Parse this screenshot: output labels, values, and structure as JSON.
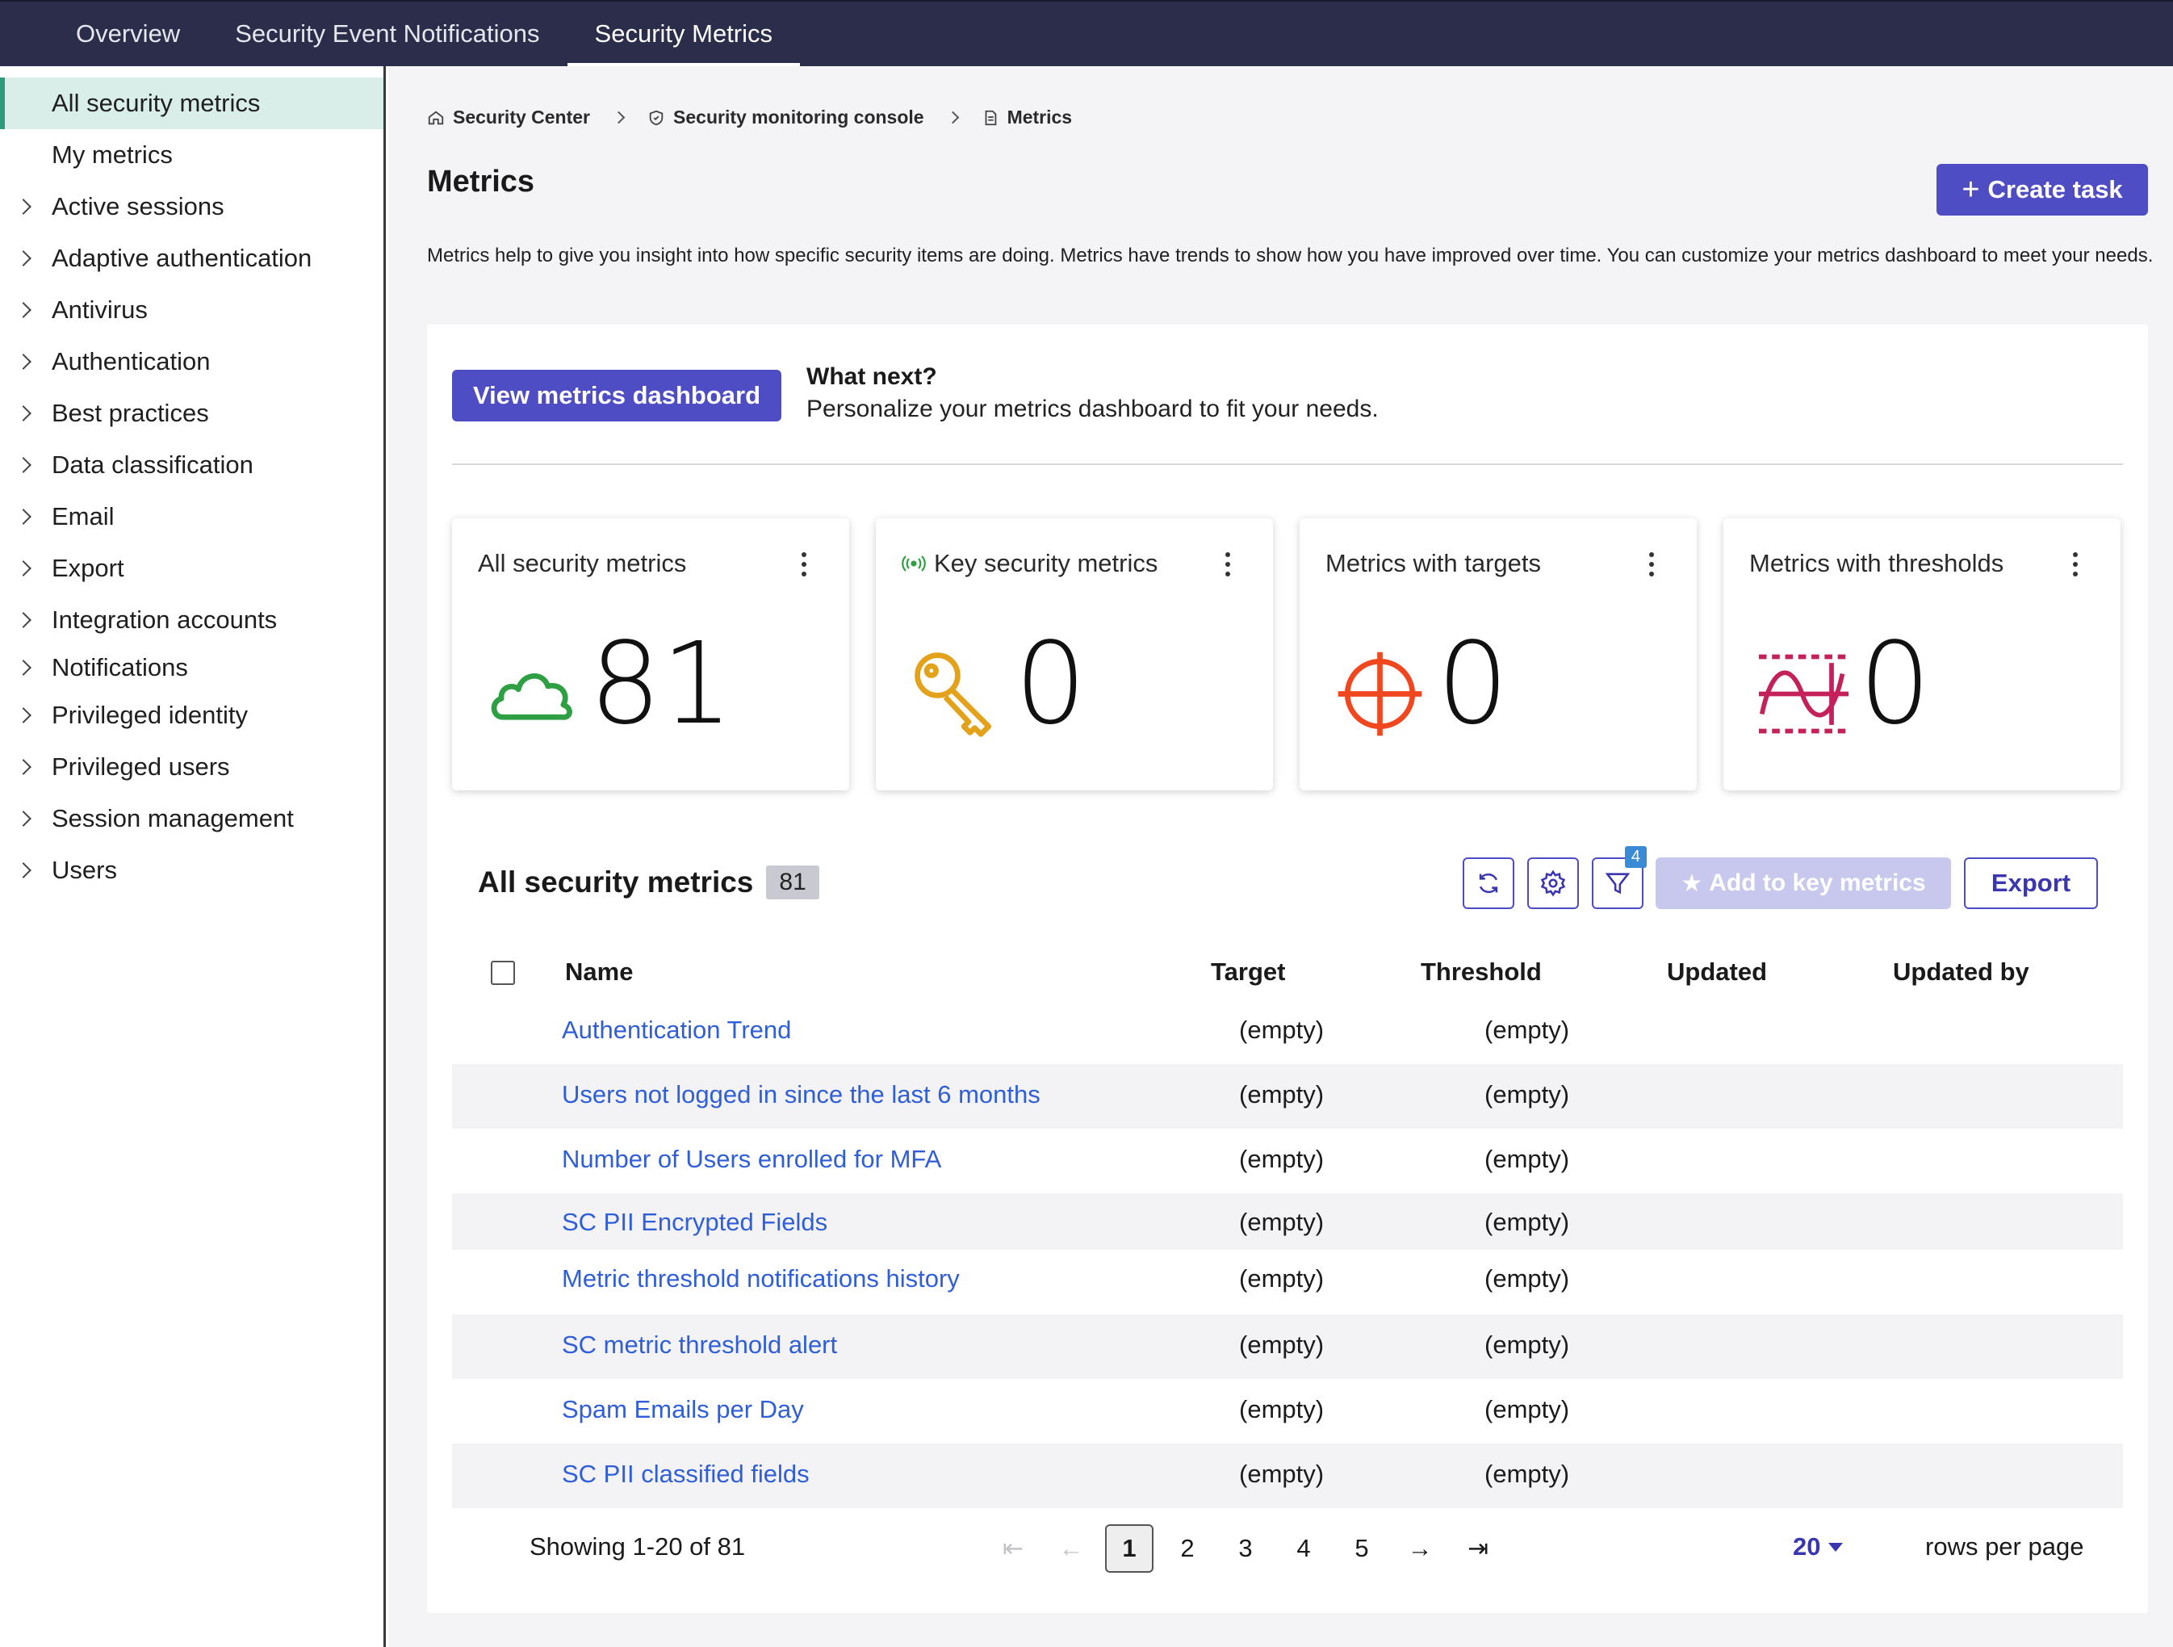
{
  "topnav": {
    "tabs": [
      {
        "label": "Overview"
      },
      {
        "label": "Security Event Notifications"
      },
      {
        "label": "Security Metrics"
      }
    ]
  },
  "sidebar": {
    "items": [
      {
        "label": "All security metrics"
      },
      {
        "label": "My metrics"
      },
      {
        "label": "Active sessions"
      },
      {
        "label": "Adaptive authentication"
      },
      {
        "label": "Antivirus"
      },
      {
        "label": "Authentication"
      },
      {
        "label": "Best practices"
      },
      {
        "label": "Data classification"
      },
      {
        "label": "Email"
      },
      {
        "label": "Export"
      },
      {
        "label": "Integration accounts"
      },
      {
        "label": "Notifications"
      },
      {
        "label": "Privileged identity"
      },
      {
        "label": "Privileged users"
      },
      {
        "label": "Session management"
      },
      {
        "label": "Users"
      }
    ]
  },
  "breadcrumb": {
    "items": [
      {
        "label": "Security Center",
        "icon": "home-icon"
      },
      {
        "label": "Security monitoring console",
        "icon": "shield-icon"
      },
      {
        "label": "Metrics",
        "icon": "document-icon"
      }
    ]
  },
  "page": {
    "title": "Metrics",
    "create_task_label": "Create task",
    "intro": "Metrics help to give you insight into how specific security items are doing. Metrics have trends to show how you have improved over time. You can customize your metrics dashboard to meet your needs."
  },
  "whatnext": {
    "button_label": "View metrics dashboard",
    "title": "What next?",
    "text": "Personalize your metrics dashboard to fit your needs."
  },
  "cards": [
    {
      "title": "All security metrics",
      "value": "81",
      "icon": "cloud-icon",
      "color": "#2ea043"
    },
    {
      "title": "Key security metrics",
      "value": "0",
      "icon": "key-icon",
      "color": "#e3a21a",
      "title_icon": "broadcast-icon"
    },
    {
      "title": "Metrics with targets",
      "value": "0",
      "icon": "target-icon",
      "color": "#f0471f"
    },
    {
      "title": "Metrics with thresholds",
      "value": "0",
      "icon": "threshold-icon",
      "color": "#c4215b"
    }
  ],
  "table": {
    "title": "All security metrics",
    "count": "81",
    "filter_count": "4",
    "add_key_label": "Add to key metrics",
    "export_label": "Export",
    "columns": {
      "name": "Name",
      "target": "Target",
      "threshold": "Threshold",
      "updated": "Updated",
      "updated_by": "Updated by"
    },
    "rows": [
      {
        "name": "Authentication Trend",
        "target": "(empty)",
        "threshold": "(empty)"
      },
      {
        "name": "Users not logged in since the last 6 months",
        "target": "(empty)",
        "threshold": "(empty)"
      },
      {
        "name": "Number of Users enrolled for MFA",
        "target": "(empty)",
        "threshold": "(empty)"
      },
      {
        "name": "SC PII Encrypted Fields",
        "target": "(empty)",
        "threshold": "(empty)"
      },
      {
        "name": "Metric threshold notifications history",
        "target": "(empty)",
        "threshold": "(empty)"
      },
      {
        "name": "SC metric threshold alert",
        "target": "(empty)",
        "threshold": "(empty)"
      },
      {
        "name": "Spam Emails per Day",
        "target": "(empty)",
        "threshold": "(empty)"
      },
      {
        "name": "SC PII classified fields",
        "target": "(empty)",
        "threshold": "(empty)"
      }
    ]
  },
  "pagination": {
    "showing": "Showing 1-20 of 81",
    "pages": [
      "1",
      "2",
      "3",
      "4",
      "5"
    ],
    "current": "1",
    "rows_per_page_value": "20",
    "rows_per_page_label": "rows per page"
  },
  "colors": {
    "accent": "#4f4dc4",
    "nav_bg": "#2b2d4a",
    "link": "#2f5ed8",
    "selected_bg": "#d9eee9"
  }
}
